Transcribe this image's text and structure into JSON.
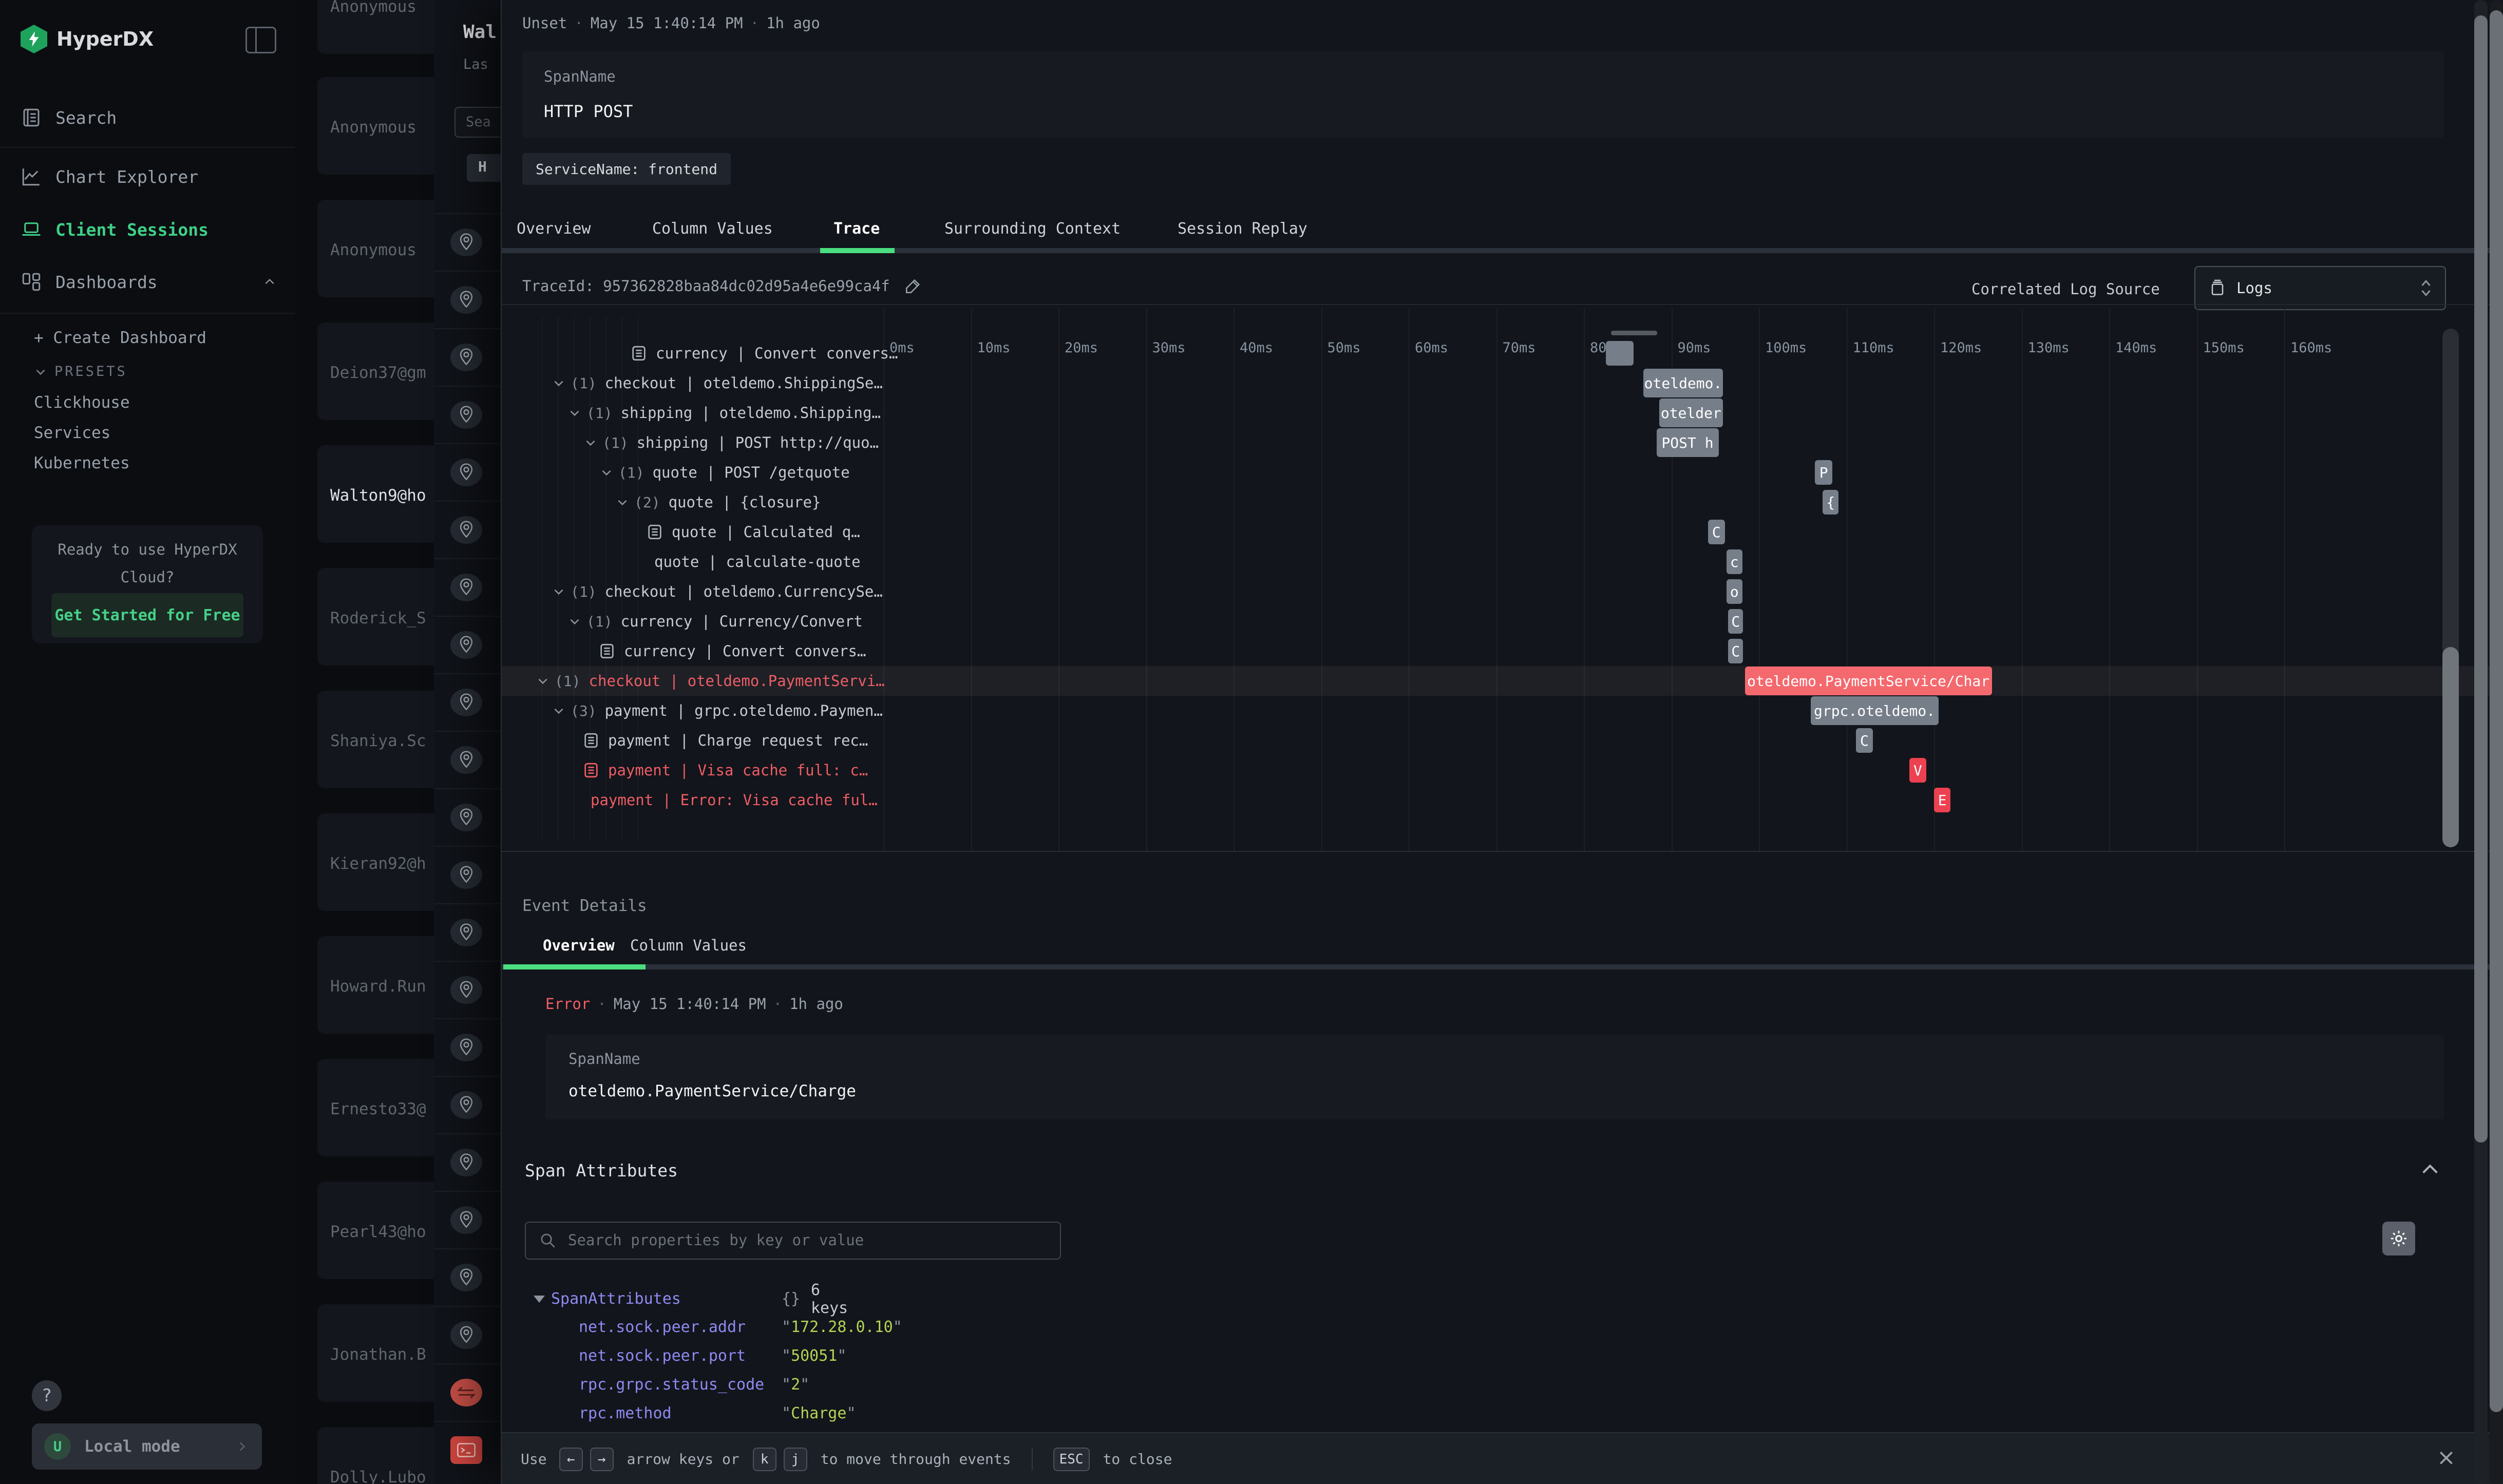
{
  "colors": {
    "accent_green": "#4ade80",
    "brand_green": "#1ea35c",
    "error_red": "#ef5f66",
    "bar_gray": "#767e89",
    "bar_red": "#f4696e",
    "bar_red_small": "#ec4150",
    "key_purple": "#8f8af2",
    "value_lime": "#b5d454"
  },
  "sidebar": {
    "brand": "HyperDX",
    "nav": [
      {
        "label": "Search",
        "icon": "journal-icon",
        "active": false
      },
      {
        "label": "Chart Explorer",
        "icon": "chart-icon",
        "active": false
      },
      {
        "label": "Client Sessions",
        "icon": "laptop-icon",
        "active": true
      },
      {
        "label": "Dashboards",
        "icon": "grid-icon",
        "active": false,
        "chevron": "up"
      }
    ],
    "create_dashboard": "+ Create Dashboard",
    "presets_label": "PRESETS",
    "presets": [
      "Clickhouse",
      "Services",
      "Kubernetes"
    ],
    "promo_line1": "Ready to use HyperDX",
    "promo_line2": "Cloud?",
    "promo_cta": "Get Started for Free",
    "help": "?",
    "user_initial": "U",
    "local_mode": "Local mode"
  },
  "background": {
    "sessions": [
      {
        "name": "Anonymous",
        "selected": false
      },
      {
        "name": "Anonymous",
        "selected": false
      },
      {
        "name": "Anonymous",
        "selected": false
      },
      {
        "name": "Deion37@gm",
        "selected": false
      },
      {
        "name": "Walton9@ho",
        "selected": true
      },
      {
        "name": "Roderick_S",
        "selected": false
      },
      {
        "name": "Shaniya.Sc",
        "selected": false
      },
      {
        "name": "Kieran92@h",
        "selected": false
      },
      {
        "name": "Howard.Run",
        "selected": false
      },
      {
        "name": "Ernesto33@",
        "selected": false
      },
      {
        "name": "Pearl43@ho",
        "selected": false
      },
      {
        "name": "Jonathan.B",
        "selected": false
      },
      {
        "name": "Dolly.Lubo",
        "selected": false
      }
    ],
    "panel": {
      "title": "Wal",
      "subtitle": "Las",
      "search_placeholder": "Sea",
      "button": "H"
    },
    "event_icons": [
      "pin",
      "pin",
      "pin",
      "pin",
      "pin",
      "pin",
      "pin",
      "pin",
      "pin",
      "pin",
      "pin",
      "pin",
      "pin",
      "pin",
      "pin",
      "pin",
      "pin",
      "pin",
      "pin",
      "pin",
      "swap",
      "terminal"
    ]
  },
  "modal": {
    "header": {
      "status": "Unset",
      "dot": "·",
      "time": "May 15 1:40:14 PM",
      "ago": "1h ago",
      "span_label": "SpanName",
      "span_value": "HTTP POST",
      "service_chip": "ServiceName: frontend"
    },
    "tabs": [
      {
        "label": "Overview",
        "active": false
      },
      {
        "label": "Column Values",
        "active": false
      },
      {
        "label": "Trace",
        "active": true
      },
      {
        "label": "Surrounding Context",
        "active": false
      },
      {
        "label": "Session Replay",
        "active": false
      }
    ],
    "trace_bar": {
      "trace_id": "TraceId: 957362828baa84dc02d95a4e6e99ca4f",
      "correlated_label": "Correlated Log Source",
      "log_source": "Logs"
    },
    "waterfall": {
      "type": "trace-waterfall-gantt",
      "unit": "ms",
      "axis_ticks": [
        "0ms",
        "10ms",
        "20ms",
        "30ms",
        "40ms",
        "50ms",
        "60ms",
        "70ms",
        "80ms",
        "90ms",
        "100ms",
        "110ms",
        "120ms",
        "130ms",
        "140ms",
        "150ms",
        "160ms"
      ],
      "rows": [
        {
          "indent": 5,
          "icon": "doc",
          "count": "",
          "text": "currency | Convert convers…",
          "error": false,
          "highlight": false,
          "bar": {
            "start_ms": 82.5,
            "end_ms": 85.7,
            "label": "",
            "style": "gray"
          }
        },
        {
          "indent": 1,
          "icon": "chevron",
          "count": "(1)",
          "text": "checkout | oteldemo.ShippingSe…",
          "error": false,
          "highlight": false,
          "bar": {
            "start_ms": 86.8,
            "end_ms": 95.9,
            "label": "oteldemo.",
            "style": "gray"
          }
        },
        {
          "indent": 2,
          "icon": "chevron",
          "count": "(1)",
          "text": "shipping | oteldemo.Shipping…",
          "error": false,
          "highlight": false,
          "bar": {
            "start_ms": 88.6,
            "end_ms": 95.9,
            "label": "otelder",
            "style": "gray"
          }
        },
        {
          "indent": 3,
          "icon": "chevron",
          "count": "(1)",
          "text": "shipping | POST http://quo…",
          "error": false,
          "highlight": false,
          "bar": {
            "start_ms": 88.3,
            "end_ms": 95.4,
            "label": "POST h",
            "style": "gray"
          }
        },
        {
          "indent": 4,
          "icon": "chevron",
          "count": "(1)",
          "text": "quote | POST /getquote",
          "error": false,
          "highlight": false,
          "bar": {
            "start_ms": 106.4,
            "end_ms": 108.4,
            "label": "P",
            "style": "gray"
          }
        },
        {
          "indent": 5,
          "icon": "chevron",
          "count": "(2)",
          "text": "quote | {closure}",
          "error": false,
          "highlight": false,
          "bar": {
            "start_ms": 107.3,
            "end_ms": 109.1,
            "label": "{",
            "style": "gray"
          }
        },
        {
          "indent": 6,
          "icon": "doc",
          "count": "",
          "text": "quote | Calculated q…",
          "error": false,
          "highlight": false,
          "bar": {
            "start_ms": 94.2,
            "end_ms": 96.1,
            "label": "C",
            "style": "gray"
          }
        },
        {
          "indent": 6,
          "icon": "none",
          "count": "",
          "text": "quote | calculate-quote",
          "error": false,
          "highlight": false,
          "bar": {
            "start_ms": 96.3,
            "end_ms": 98.1,
            "label": "c",
            "style": "gray"
          }
        },
        {
          "indent": 1,
          "icon": "chevron",
          "count": "(1)",
          "text": "checkout | oteldemo.CurrencySe…",
          "error": false,
          "highlight": false,
          "bar": {
            "start_ms": 96.3,
            "end_ms": 98.1,
            "label": "o",
            "style": "gray"
          }
        },
        {
          "indent": 2,
          "icon": "chevron",
          "count": "(1)",
          "text": "currency | Currency/Convert",
          "error": false,
          "highlight": false,
          "bar": {
            "start_ms": 96.5,
            "end_ms": 98.2,
            "label": "C",
            "style": "gray"
          }
        },
        {
          "indent": 3,
          "icon": "doc",
          "count": "",
          "text": "currency | Convert convers…",
          "error": false,
          "highlight": false,
          "bar": {
            "start_ms": 96.5,
            "end_ms": 98.2,
            "label": "C",
            "style": "gray"
          }
        },
        {
          "indent": 0,
          "icon": "chevron",
          "count": "(1)",
          "text": "checkout | oteldemo.PaymentServi…",
          "error": true,
          "highlight": true,
          "bar": {
            "start_ms": 98.4,
            "end_ms": 126.6,
            "label": "oteldemo.PaymentService/Char",
            "style": "red"
          }
        },
        {
          "indent": 1,
          "icon": "chevron",
          "count": "(3)",
          "text": "payment | grpc.oteldemo.Paymen…",
          "error": false,
          "highlight": false,
          "bar": {
            "start_ms": 105.9,
            "end_ms": 120.5,
            "label": "grpc.oteldemo.",
            "style": "gray"
          }
        },
        {
          "indent": 2,
          "icon": "doc",
          "count": "",
          "text": "payment | Charge request rec…",
          "error": false,
          "highlight": false,
          "bar": {
            "start_ms": 111.1,
            "end_ms": 113.0,
            "label": "C",
            "style": "gray"
          }
        },
        {
          "indent": 2,
          "icon": "doc",
          "count": "",
          "text": "payment | Visa cache full: c…",
          "error": true,
          "highlight": false,
          "bar": {
            "start_ms": 117.2,
            "end_ms": 119.1,
            "label": "V",
            "style": "redsm"
          }
        },
        {
          "indent": 2,
          "icon": "none",
          "count": "",
          "text": "payment | Error: Visa cache ful…",
          "error": true,
          "highlight": false,
          "bar": {
            "start_ms": 120.0,
            "end_ms": 121.9,
            "label": "E",
            "style": "redsm"
          }
        }
      ]
    },
    "event_details": {
      "heading": "Event Details",
      "tabs": [
        {
          "label": "Overview",
          "active": true
        },
        {
          "label": "Column Values",
          "active": false
        }
      ],
      "status": "Error",
      "dot": "·",
      "time": "May 15 1:40:14 PM",
      "ago": "1h ago",
      "span_label": "SpanName",
      "span_value": "oteldemo.PaymentService/Charge"
    },
    "span_attributes": {
      "heading": "Span Attributes",
      "search_placeholder": "Search properties by key or value",
      "root": "SpanAttributes",
      "braces": "{}",
      "keys_count": "6 keys",
      "items": [
        {
          "key": "net.sock.peer.addr",
          "value": "172.28.0.10"
        },
        {
          "key": "net.sock.peer.port",
          "value": "50051"
        },
        {
          "key": "rpc.grpc.status_code",
          "value": "2"
        },
        {
          "key": "rpc.method",
          "value": "Charge"
        }
      ]
    },
    "footer": {
      "prefix": "Use",
      "arrow_left": "←",
      "arrow_right": "→",
      "mid": "arrow keys or",
      "key_k": "k",
      "key_j": "j",
      "suffix": "to move through events",
      "esc": "ESC",
      "close_text": "to close",
      "close_x": "×"
    }
  }
}
